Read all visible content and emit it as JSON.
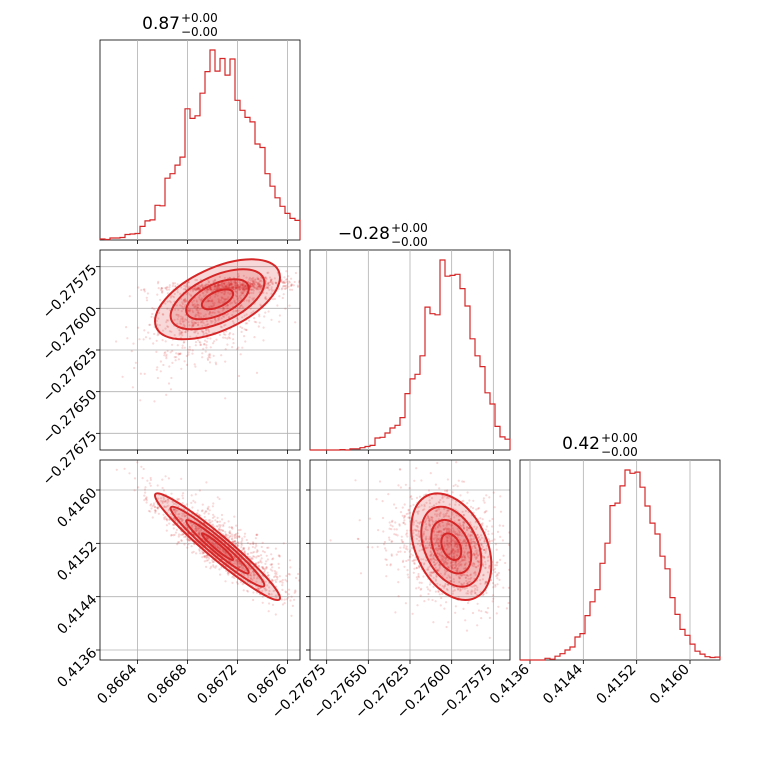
{
  "chart_data": {
    "type": "corner",
    "color": "#d62728",
    "grid": true,
    "parameters": [
      {
        "title": {
          "value": "0.87",
          "upper": "+0.00",
          "lower": "−0.00"
        },
        "range": [
          0.8661,
          0.8677
        ],
        "ticks": [
          0.8664,
          0.8668,
          0.8672,
          0.8676
        ],
        "tick_labels": [
          "0.8664",
          "0.8668",
          "0.8672",
          "0.8676"
        ],
        "center": 0.8669,
        "sd": 0.00025,
        "skew": 0.00035
      },
      {
        "title": {
          "value": "−0.28",
          "upper": "+0.00",
          "lower": "−0.00"
        },
        "range": [
          -0.27685,
          -0.27565
        ],
        "ticks": [
          -0.27675,
          -0.2765,
          -0.27625,
          -0.276,
          -0.27575
        ],
        "tick_labels": [
          "−0.27675",
          "−0.27650",
          "−0.27625",
          "−0.27600",
          "−0.27575"
        ],
        "center": -0.27589,
        "sd": 0.00012,
        "skew": -0.00028
      },
      {
        "title": {
          "value": "0.42",
          "upper": "+0.00",
          "lower": "−0.00"
        },
        "range": [
          0.41345,
          0.41645
        ],
        "ticks": [
          0.4136,
          0.4144,
          0.4152,
          0.416
        ],
        "tick_labels": [
          "0.4136",
          "0.4144",
          "0.4152",
          "0.4160"
        ],
        "center": 0.41515,
        "sd": 0.0004,
        "skew": 0
      }
    ],
    "pairs": [
      {
        "row": 1,
        "col": 0,
        "correlation": 0.55
      },
      {
        "row": 2,
        "col": 0,
        "correlation": -0.96
      },
      {
        "row": 2,
        "col": 1,
        "correlation": -0.35
      }
    ]
  }
}
